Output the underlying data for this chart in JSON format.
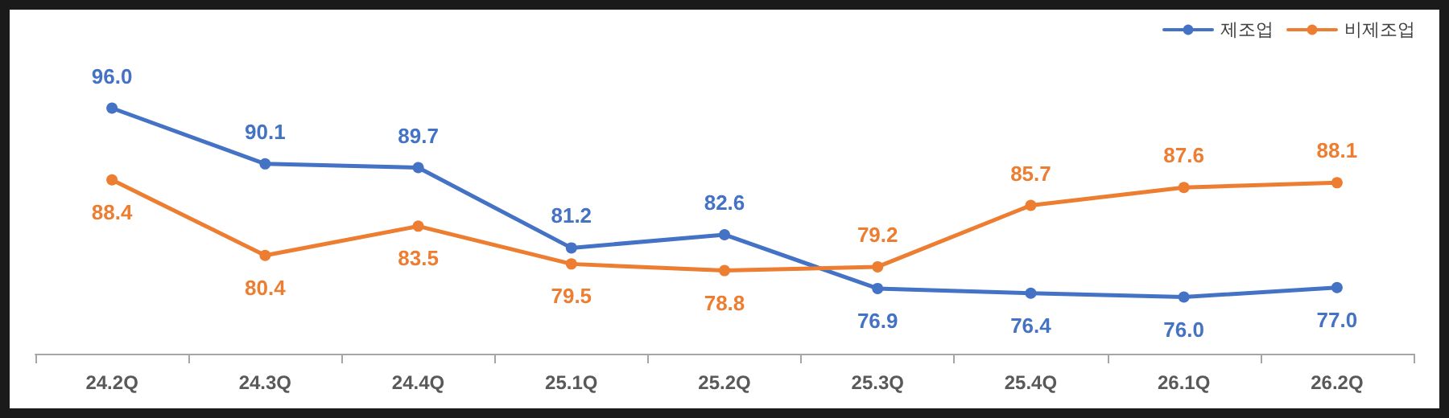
{
  "chart_data": {
    "type": "line",
    "categories": [
      "24.2Q",
      "24.3Q",
      "24.4Q",
      "25.1Q",
      "25.2Q",
      "25.3Q",
      "25.4Q",
      "26.1Q",
      "26.2Q"
    ],
    "series": [
      {
        "name": "제조업",
        "color": "#4472c4",
        "values": [
          96.0,
          90.1,
          89.7,
          81.2,
          82.6,
          76.9,
          76.4,
          76.0,
          77.0
        ],
        "value_labels": [
          "96.0",
          "90.1",
          "89.7",
          "81.2",
          "82.6",
          "76.9",
          "76.4",
          "76.0",
          "77.0"
        ]
      },
      {
        "name": "비제조업",
        "color": "#ed7d31",
        "values": [
          88.4,
          80.4,
          83.5,
          79.5,
          78.8,
          79.2,
          85.7,
          87.6,
          88.1
        ],
        "value_labels": [
          "88.4",
          "80.4",
          "83.5",
          "79.5",
          "78.8",
          "79.2",
          "85.7",
          "87.6",
          "88.1"
        ]
      }
    ],
    "marker": "circle",
    "line_style": "solid",
    "grid": false,
    "legend": "top right",
    "tick_labels": "x"
  }
}
